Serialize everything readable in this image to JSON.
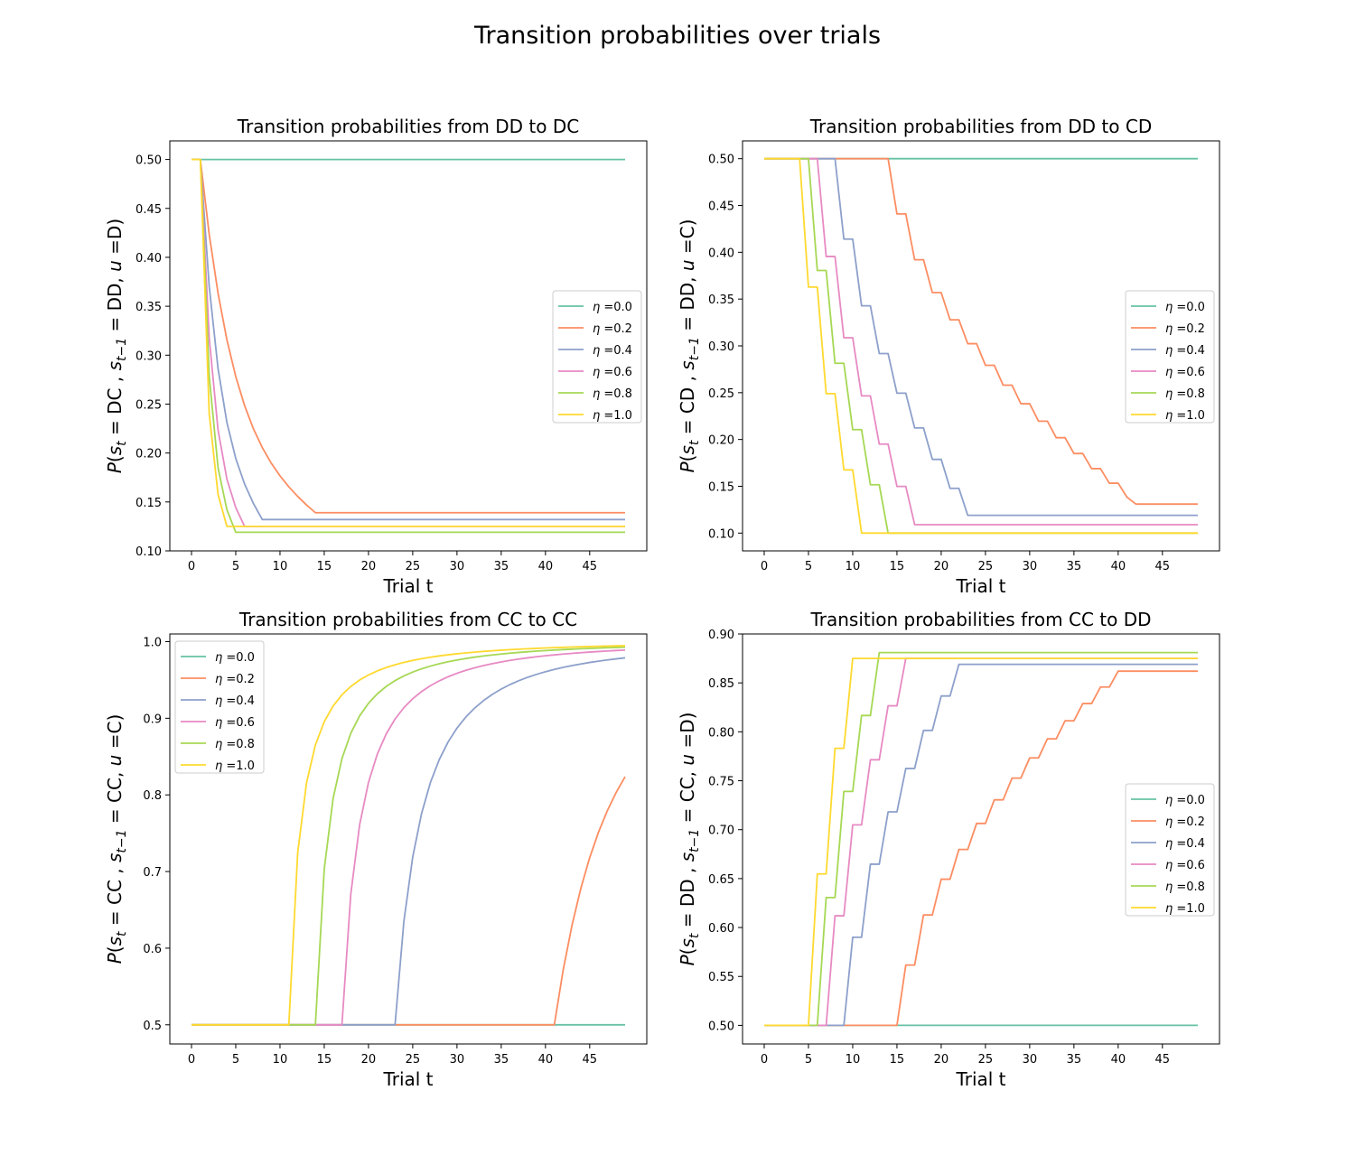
{
  "figure": {
    "title": "Transition probabilities over trials"
  },
  "colors": {
    "eta_0.0": "#66c2a5",
    "eta_0.2": "#fc8d62",
    "eta_0.4": "#8da0cb",
    "eta_0.6": "#e78ac3",
    "eta_0.8": "#a6d854",
    "eta_1.0": "#ffd92f"
  },
  "chart_data": [
    {
      "type": "line",
      "title": "Transition probabilities from DD to DC",
      "xlabel": "Trial t",
      "ylabel_parts": {
        "lhs": "DC",
        "prev": "DD",
        "action": "D"
      },
      "xlim": [
        -2.45,
        51.45
      ],
      "ylim": [
        0.1,
        0.519
      ],
      "xticks": [
        0,
        5,
        10,
        15,
        20,
        25,
        30,
        35,
        40,
        45
      ],
      "yticks": [
        0.1,
        0.15,
        0.2,
        0.25,
        0.3,
        0.35,
        0.4,
        0.45,
        0.5
      ],
      "ytick_labels": [
        "0.10",
        "0.15",
        "0.20",
        "0.25",
        "0.30",
        "0.35",
        "0.40",
        "0.45",
        "0.50"
      ],
      "legend_position": "center-right",
      "series": [
        {
          "name": "η =0.0",
          "kind": "const",
          "value": 0.5
        },
        {
          "name": "η =0.2",
          "kind": "decay",
          "start": 1,
          "v0": 0.5,
          "floor": 0.139,
          "tau": 4.2,
          "end": 14
        },
        {
          "name": "η =0.4",
          "kind": "decay",
          "start": 1,
          "v0": 0.5,
          "floor": 0.132,
          "tau": 2.3,
          "end": 8
        },
        {
          "name": "η =0.6",
          "kind": "decay",
          "start": 1,
          "v0": 0.5,
          "floor": 0.125,
          "tau": 1.5,
          "end": 6
        },
        {
          "name": "η =0.8",
          "kind": "decay",
          "start": 1,
          "v0": 0.5,
          "floor": 0.119,
          "tau": 1.15,
          "end": 5
        },
        {
          "name": "η =1.0",
          "kind": "decay",
          "start": 1,
          "v0": 0.5,
          "floor": 0.125,
          "tau": 0.85,
          "end": 4
        }
      ]
    },
    {
      "type": "line",
      "title": "Transition probabilities from DD to CD",
      "xlabel": "Trial t",
      "ylabel_parts": {
        "lhs": "CD",
        "prev": "DD",
        "action": "C"
      },
      "xlim": [
        -2.45,
        51.45
      ],
      "ylim": [
        0.081,
        0.519
      ],
      "xticks": [
        0,
        5,
        10,
        15,
        20,
        25,
        30,
        35,
        40,
        45
      ],
      "yticks": [
        0.1,
        0.15,
        0.2,
        0.25,
        0.3,
        0.35,
        0.4,
        0.45,
        0.5
      ],
      "ytick_labels": [
        "0.10",
        "0.15",
        "0.20",
        "0.25",
        "0.30",
        "0.35",
        "0.40",
        "0.45",
        "0.50"
      ],
      "legend_position": "center-right",
      "series": [
        {
          "name": "η =0.0",
          "kind": "const",
          "value": 0.5
        },
        {
          "name": "η =0.2",
          "kind": "staircase",
          "start": 14,
          "v0": 0.5,
          "floor": 0.131,
          "k": 0.25,
          "end": 42
        },
        {
          "name": "η =0.4",
          "kind": "staircase",
          "start": 8,
          "v0": 0.5,
          "floor": 0.119,
          "k": 0.4,
          "end": 23
        },
        {
          "name": "η =0.6",
          "kind": "staircase",
          "start": 6,
          "v0": 0.5,
          "floor": 0.109,
          "k": 0.6,
          "end": 17
        },
        {
          "name": "η =0.8",
          "kind": "staircase",
          "start": 5,
          "v0": 0.5,
          "floor": 0.1,
          "k": 0.8,
          "end": 14
        },
        {
          "name": "η =1.0",
          "kind": "staircase",
          "start": 4,
          "v0": 0.5,
          "floor": 0.1,
          "k": 1.0,
          "end": 11
        }
      ]
    },
    {
      "type": "line",
      "title": "Transition probabilities from CC to CC",
      "xlabel": "Trial t",
      "ylabel_parts": {
        "lhs": "CC",
        "prev": "CC",
        "action": "C"
      },
      "xlim": [
        -2.45,
        51.45
      ],
      "ylim": [
        0.475,
        1.01
      ],
      "xticks": [
        0,
        5,
        10,
        15,
        20,
        25,
        30,
        35,
        40,
        45
      ],
      "yticks": [
        0.5,
        0.6,
        0.7,
        0.8,
        0.9,
        1.0
      ],
      "ytick_labels": [
        "0.5",
        "0.6",
        "0.7",
        "0.8",
        "0.9",
        "1.0"
      ],
      "legend_position": "upper-left",
      "series": [
        {
          "name": "η =0.0",
          "kind": "const",
          "value": 0.5
        },
        {
          "name": "η =0.2",
          "kind": "rise",
          "start": 41,
          "scale": 0.45
        },
        {
          "name": "η =0.4",
          "kind": "rise",
          "start": 23,
          "scale": 1.0
        },
        {
          "name": "η =0.6",
          "kind": "rise",
          "start": 17,
          "scale": 1.4
        },
        {
          "name": "η =0.8",
          "kind": "rise",
          "start": 14,
          "scale": 1.85
        },
        {
          "name": "η =1.0",
          "kind": "rise",
          "start": 11,
          "scale": 2.2
        }
      ]
    },
    {
      "type": "line",
      "title": "Transition probabilities from CC to DD",
      "xlabel": "Trial t",
      "ylabel_parts": {
        "lhs": "DD",
        "prev": "CC",
        "action": "D"
      },
      "xlim": [
        -2.45,
        51.45
      ],
      "ylim": [
        0.481,
        0.9
      ],
      "xticks": [
        0,
        5,
        10,
        15,
        20,
        25,
        30,
        35,
        40,
        45
      ],
      "yticks": [
        0.5,
        0.55,
        0.6,
        0.65,
        0.7,
        0.75,
        0.8,
        0.85,
        0.9
      ],
      "ytick_labels": [
        "0.50",
        "0.55",
        "0.60",
        "0.65",
        "0.70",
        "0.75",
        "0.80",
        "0.85",
        "0.90"
      ],
      "legend_position": "center-right",
      "series": [
        {
          "name": "η =0.0",
          "kind": "const",
          "value": 0.5
        },
        {
          "name": "η =0.2",
          "kind": "staircase",
          "start": 15,
          "v0": 0.5,
          "floor": 0.862,
          "k": 0.2,
          "end": 40
        },
        {
          "name": "η =0.4",
          "kind": "staircase",
          "start": 9,
          "v0": 0.5,
          "floor": 0.869,
          "k": 0.4,
          "end": 22
        },
        {
          "name": "η =0.6",
          "kind": "staircase",
          "start": 7,
          "v0": 0.5,
          "floor": 0.875,
          "k": 0.6,
          "end": 16
        },
        {
          "name": "η =0.8",
          "kind": "staircase",
          "start": 6,
          "v0": 0.5,
          "floor": 0.881,
          "k": 0.8,
          "end": 13
        },
        {
          "name": "η =1.0",
          "kind": "staircase",
          "start": 5,
          "v0": 0.5,
          "floor": 0.875,
          "k": 1.2,
          "end": 10
        }
      ]
    }
  ]
}
